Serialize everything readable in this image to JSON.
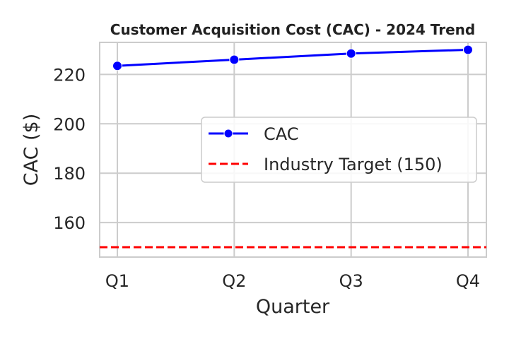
{
  "chart_data": {
    "type": "line",
    "title": "Customer Acquisition Cost (CAC) - 2024 Trend",
    "xlabel": "Quarter",
    "ylabel": "CAC ($)",
    "categories": [
      "Q1",
      "Q2",
      "Q3",
      "Q4"
    ],
    "series": [
      {
        "name": "CAC",
        "values": [
          223.5,
          226.0,
          228.5,
          230.0
        ],
        "color": "#0000ff",
        "marker": "circle",
        "line_style": "solid"
      }
    ],
    "reference_lines": [
      {
        "name": "Industry Target (150)",
        "value": 150,
        "color": "#ff0000",
        "line_style": "dashed"
      }
    ],
    "ylim": [
      146,
      233
    ],
    "yticks": [
      160,
      180,
      200,
      220
    ],
    "grid": true,
    "legend_position": "center-right"
  }
}
